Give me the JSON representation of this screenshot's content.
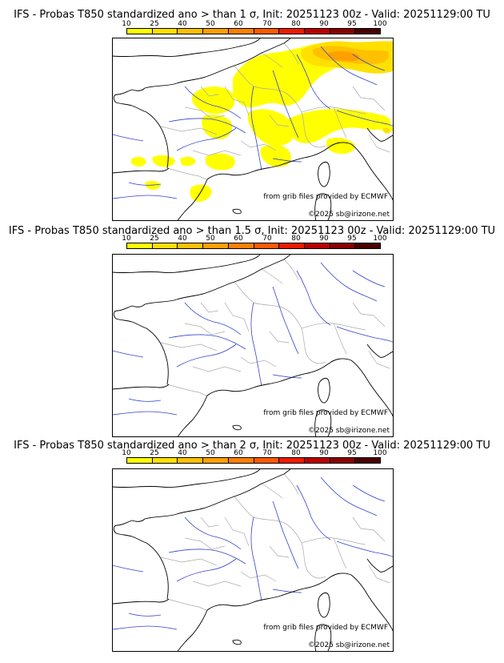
{
  "colorbar": {
    "labels": [
      "10",
      "25",
      "40",
      "50",
      "60",
      "70",
      "80",
      "90",
      "95",
      "100"
    ],
    "colors": [
      "#ffff00",
      "#ffe000",
      "#ffc000",
      "#ffa000",
      "#ff8000",
      "#ff5a00",
      "#ee1a00",
      "#bb0000",
      "#8a0000",
      "#4a0000"
    ]
  },
  "panels": [
    {
      "title": "IFS - Probas T850  standardized ano > than 1 σ, Init: 20251123 00z - Valid: 20251129:00 TU",
      "source_credit": "from grib files provided by ECMWF",
      "copyright": "©2025 sb@irizone.net",
      "shading": "yellow-orange areas over northern and eastern France, Belgium, Netherlands, Germany, Switzerland and northern Italy; small yellow areas over northern Spain"
    },
    {
      "title": "IFS - Probas T850  standardized ano > than 1.5 σ, Init: 20251123 00z - Valid: 20251129:00 TU",
      "source_credit": "from grib files provided by ECMWF",
      "copyright": "©2025 sb@irizone.net",
      "shading": "none"
    },
    {
      "title": "IFS - Probas T850  standardized ano > than 2 σ, Init: 20251123 00z - Valid: 20251129:00 TU",
      "source_credit": "from grib files provided by ECMWF",
      "copyright": "©2025 sb@irizone.net",
      "shading": "none"
    }
  ],
  "map_colors": {
    "coast": "#000000",
    "rivers": "#3344cc",
    "borders": "#aaaaaa"
  }
}
